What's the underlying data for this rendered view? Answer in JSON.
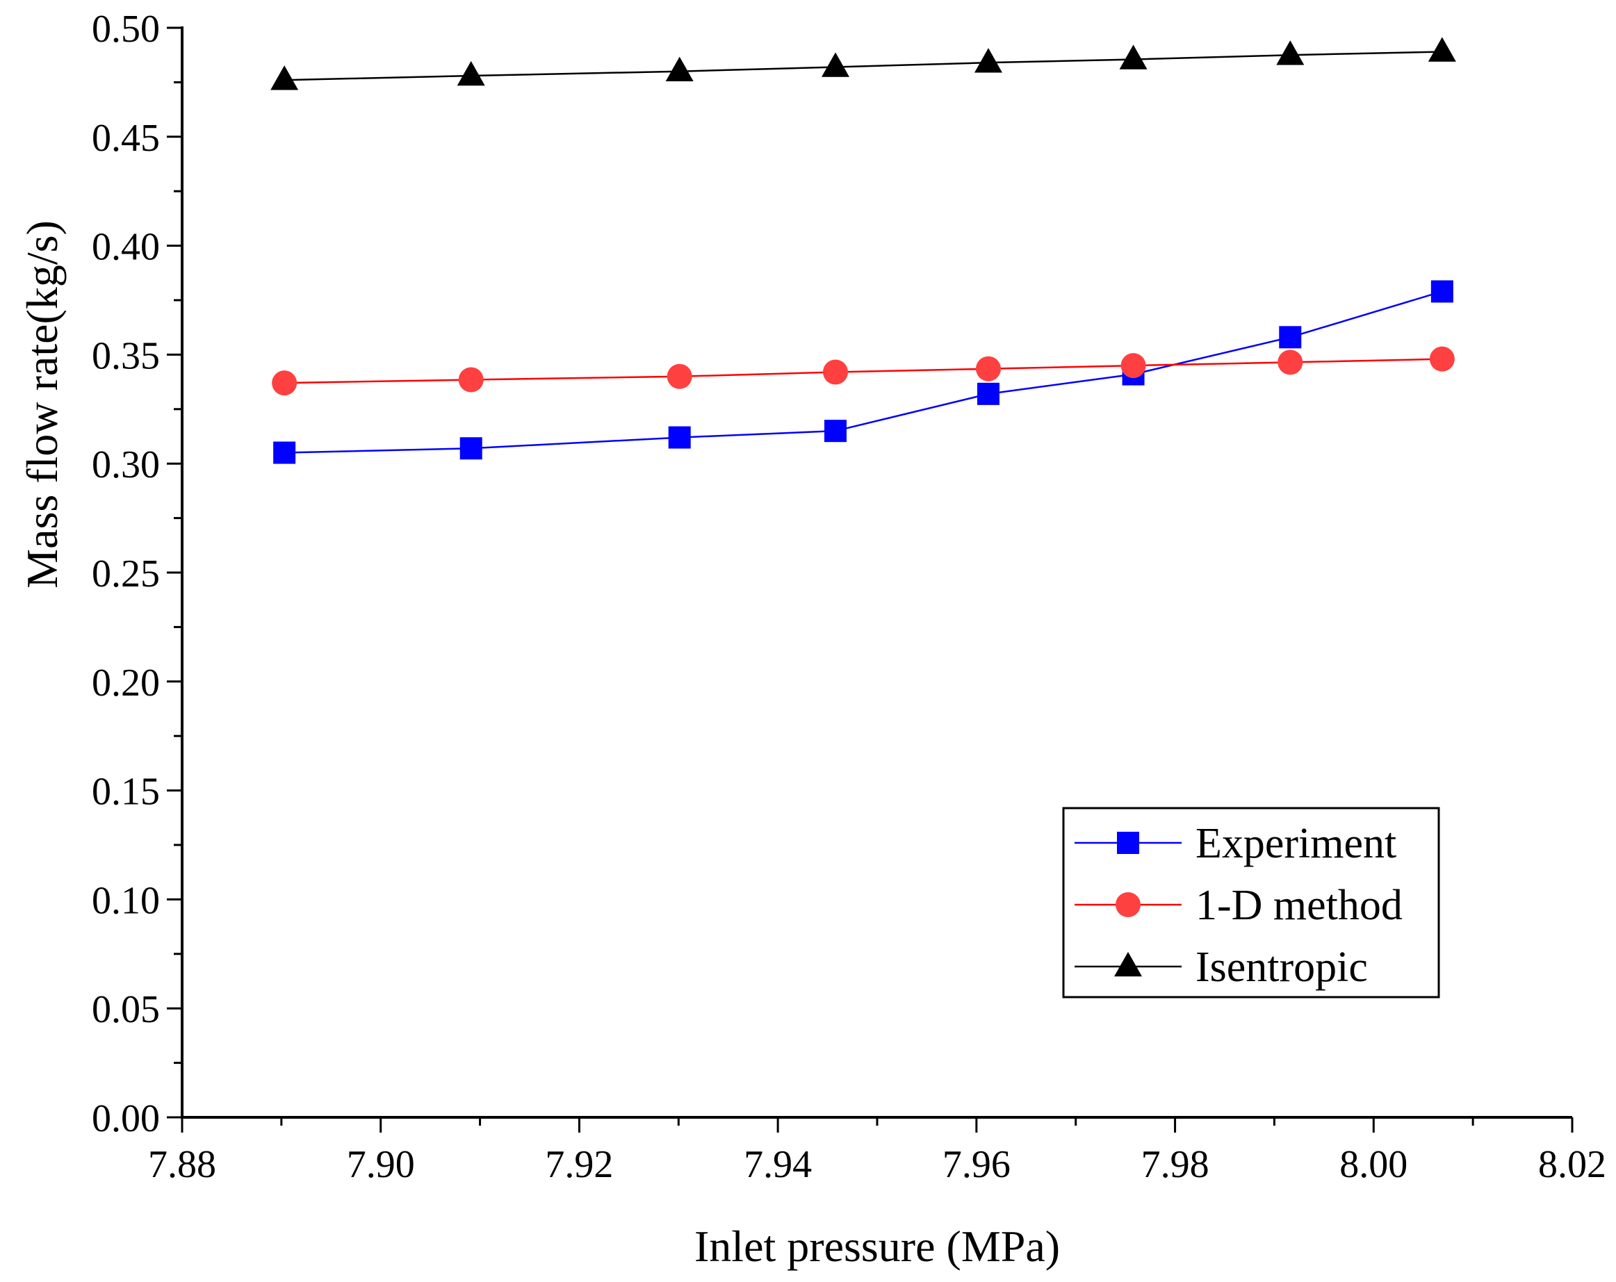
{
  "chart_data": {
    "type": "line",
    "title": "",
    "xlabel": "Inlet pressure (MPa)",
    "ylabel": "Mass flow rate(kg/s)",
    "xlim": [
      7.88,
      8.02
    ],
    "ylim": [
      0.0,
      0.5
    ],
    "xticks": [
      "7.88",
      "7.90",
      "7.92",
      "7.94",
      "7.96",
      "7.98",
      "8.00",
      "8.02"
    ],
    "yticks": [
      "0.00",
      "0.05",
      "0.10",
      "0.15",
      "0.20",
      "0.25",
      "0.30",
      "0.35",
      "0.40",
      "0.45",
      "0.50"
    ],
    "legend_position": "bottom-right",
    "grid": false,
    "x": [
      7.8903,
      7.9091,
      7.9301,
      7.9458,
      7.9612,
      7.9758,
      7.9916,
      8.0069
    ],
    "series": [
      {
        "name": "Experiment",
        "color": "#0000ff",
        "marker": "square",
        "values": [
          0.305,
          0.307,
          0.312,
          0.315,
          0.332,
          0.341,
          0.358,
          0.379
        ]
      },
      {
        "name": "1-D method",
        "color": "#ff0000",
        "marker_color": "#ff4040",
        "marker": "circle",
        "values": [
          0.337,
          0.3385,
          0.34,
          0.342,
          0.3435,
          0.345,
          0.3465,
          0.348
        ]
      },
      {
        "name": "Isentropic",
        "color": "#000000",
        "marker": "triangle",
        "values": [
          0.476,
          0.478,
          0.48,
          0.482,
          0.484,
          0.4855,
          0.4875,
          0.489
        ]
      }
    ]
  }
}
